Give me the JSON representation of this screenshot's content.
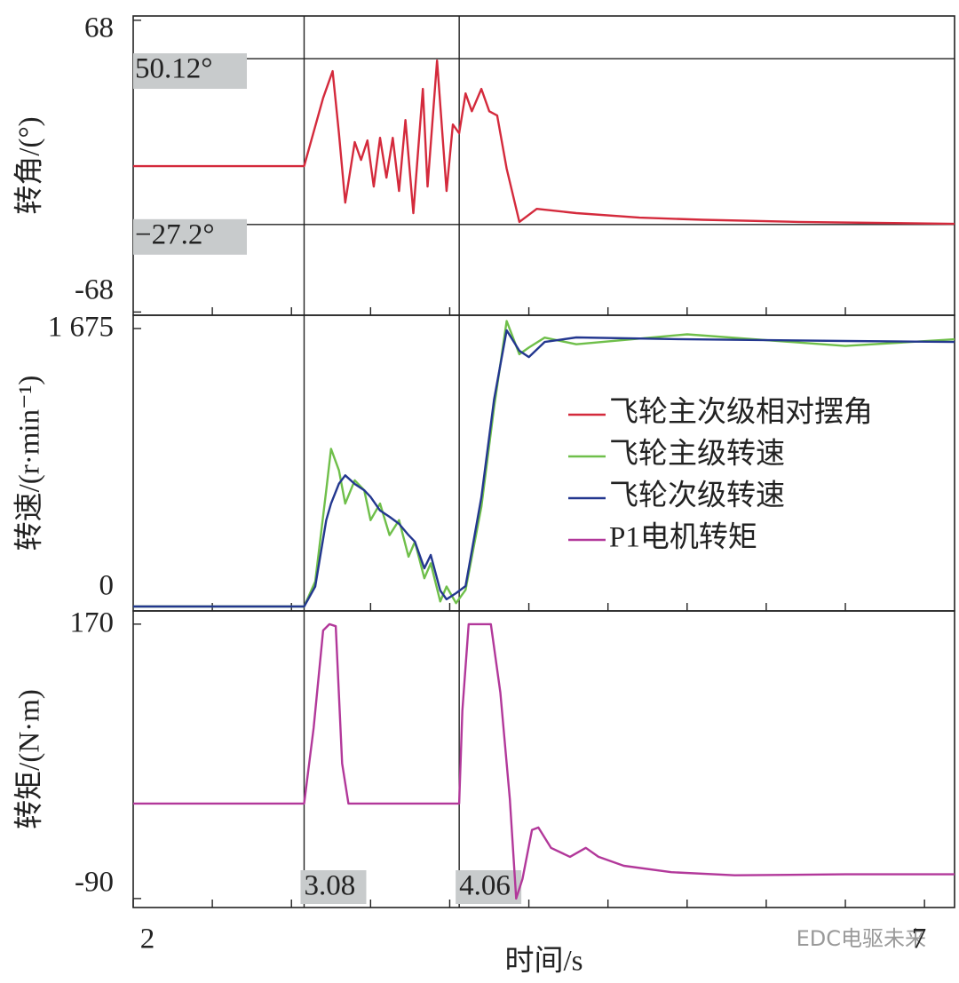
{
  "chart_data": [
    {
      "type": "line",
      "ylabel": "转角/(°)",
      "xlim": [
        2,
        7.19
      ],
      "ylim": [
        -69.5,
        70
      ],
      "yticks": [
        68,
        -68
      ],
      "xminor_ticks": [
        2.5,
        3,
        3.5,
        4,
        4.5,
        5,
        5.5,
        6,
        6.5
      ],
      "vlines": [
        3.08,
        4.06
      ],
      "hlines": [
        {
          "value": 50.12,
          "label": "50.12°"
        },
        {
          "value": -27.2,
          "label": "−27.2°"
        }
      ],
      "x": [
        2,
        3.08,
        3.2,
        3.26,
        3.3,
        3.34,
        3.4,
        3.44,
        3.48,
        3.52,
        3.56,
        3.6,
        3.64,
        3.68,
        3.72,
        3.77,
        3.83,
        3.86,
        3.92,
        3.98,
        4.02,
        4.06,
        4.1,
        4.14,
        4.2,
        4.25,
        4.3,
        4.36,
        4.44,
        4.55,
        4.8,
        5.2,
        5.6,
        6.2,
        7.19
      ],
      "series": [
        {
          "name": "飞轮主次级相对摆角",
          "color": "#d42a3c",
          "values": [
            0,
            0,
            31.8,
            44.3,
            15.3,
            -17,
            11.2,
            2.9,
            12,
            -9.5,
            13.2,
            -5.4,
            13.2,
            -11.6,
            21.5,
            -21.9,
            36,
            -9.5,
            49.2,
            -11.6,
            19.4,
            15.3,
            33.9,
            25.6,
            36,
            25.6,
            23.6,
            -1.2,
            -26,
            -19.9,
            -21.9,
            -24,
            -25,
            -26,
            -26.9
          ]
        }
      ]
    },
    {
      "type": "line",
      "ylabel": "转速/(r·min⁻¹)",
      "xlim": [
        2,
        7.19
      ],
      "ylim": [
        -27,
        1755
      ],
      "yticks": [
        {
          "value": 1675,
          "label": "1 675"
        },
        0
      ],
      "xminor_ticks": [
        2.5,
        3,
        3.5,
        4,
        4.5,
        5,
        5.5,
        6,
        6.5
      ],
      "vlines": [
        3.08,
        4.06
      ],
      "legend": "right",
      "x": [
        2,
        3.08,
        3.15,
        3.22,
        3.25,
        3.3,
        3.34,
        3.4,
        3.46,
        3.5,
        3.56,
        3.62,
        3.68,
        3.74,
        3.78,
        3.84,
        3.88,
        3.94,
        3.98,
        4.04,
        4.1,
        4.2,
        4.28,
        4.36,
        4.44,
        4.5,
        4.6,
        4.8,
        5.5,
        6.5,
        7.19
      ],
      "series": [
        {
          "name": "飞轮主级转速",
          "color": "#6fbf4a",
          "values": [
            0,
            0,
            150,
            700,
            950,
            820,
            620,
            760,
            700,
            520,
            620,
            430,
            520,
            300,
            390,
            170,
            260,
            30,
            120,
            20,
            100,
            600,
            1200,
            1720,
            1520,
            1560,
            1620,
            1580,
            1640,
            1570,
            1610
          ]
        },
        {
          "name": "飞轮次级转速",
          "color": "#23378f",
          "values": [
            0,
            0,
            120,
            520,
            620,
            740,
            790,
            738,
            700,
            660,
            578,
            540,
            498,
            430,
            391,
            230,
            310,
            96,
            43,
            80,
            123,
            658,
            1247,
            1664,
            1541,
            1503,
            1594,
            1621,
            1610,
            1600,
            1594
          ]
        }
      ]
    },
    {
      "type": "line",
      "ylabel": "转矩/(N·m)",
      "xlabel": "时间/s",
      "xlim": [
        2,
        7.19
      ],
      "ylim": [
        -98.5,
        182.5
      ],
      "yticks": [
        170,
        -90
      ],
      "xticks": [
        2,
        7
      ],
      "xminor_ticks": [
        2.5,
        3,
        3.5,
        4,
        4.5,
        5,
        5.5,
        6,
        6.5
      ],
      "vlines": [
        3.08,
        4.06
      ],
      "vline_labels": true,
      "x": [
        2,
        3.08,
        3.14,
        3.2,
        3.24,
        3.28,
        3.32,
        3.36,
        4.06,
        4.08,
        4.12,
        4.26,
        4.32,
        4.38,
        4.42,
        4.46,
        4.52,
        4.56,
        4.64,
        4.76,
        4.86,
        4.94,
        5.1,
        5.4,
        5.8,
        6.5,
        7.19
      ],
      "series": [
        {
          "name": "P1电机转矩",
          "color": "#b2389a",
          "values": [
            0,
            0,
            71.5,
            164,
            170,
            168,
            38,
            0,
            0,
            88,
            170,
            170,
            105,
            4,
            -90,
            -71.5,
            -25,
            -22.7,
            -42,
            -50.5,
            -42,
            -50.5,
            -59,
            -65,
            -68,
            -67,
            -67
          ]
        }
      ]
    }
  ],
  "watermark": "EDC电驱未来"
}
